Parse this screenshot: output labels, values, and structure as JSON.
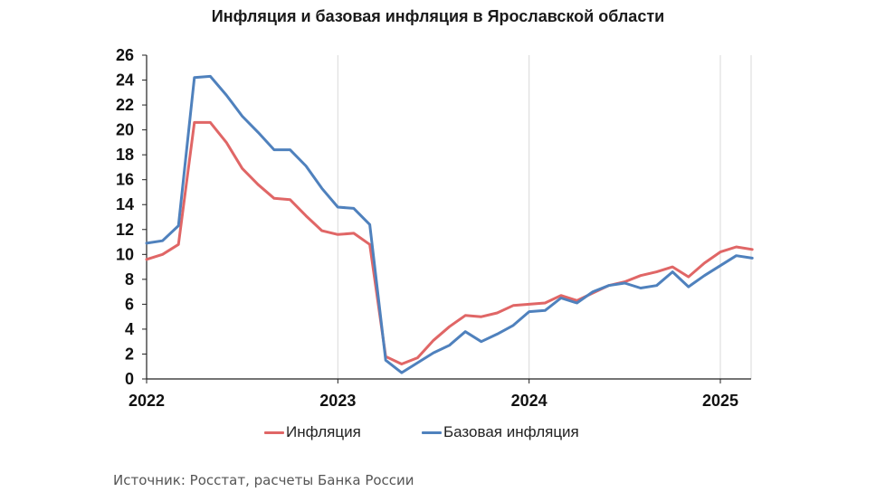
{
  "chart_data": {
    "type": "line",
    "title": "Инфляция и базовая инфляция в Ярославской области",
    "xlabel": "",
    "ylabel": "",
    "ylim": [
      0,
      26
    ],
    "yticks": [
      0,
      2,
      4,
      6,
      8,
      10,
      12,
      14,
      16,
      18,
      20,
      22,
      24,
      26
    ],
    "xticks": [
      "2022",
      "2023",
      "2024",
      "2025"
    ],
    "grid": "vertical",
    "legend_position": "bottom",
    "x": [
      "2022-01",
      "2022-02",
      "2022-03",
      "2022-04",
      "2022-05",
      "2022-06",
      "2022-07",
      "2022-08",
      "2022-09",
      "2022-10",
      "2022-11",
      "2022-12",
      "2023-01",
      "2023-02",
      "2023-03",
      "2023-04",
      "2023-05",
      "2023-06",
      "2023-07",
      "2023-08",
      "2023-09",
      "2023-10",
      "2023-11",
      "2023-12",
      "2024-01",
      "2024-02",
      "2024-03",
      "2024-04",
      "2024-05",
      "2024-06",
      "2024-07",
      "2024-08",
      "2024-09",
      "2024-10",
      "2024-11",
      "2024-12",
      "2025-01",
      "2025-02",
      "2025-03"
    ],
    "series": [
      {
        "name": "Инфляция",
        "color": "#e06666",
        "values": [
          9.6,
          10.0,
          10.8,
          20.6,
          20.6,
          19.0,
          16.9,
          15.6,
          14.5,
          14.4,
          13.1,
          11.9,
          11.6,
          11.7,
          10.8,
          1.8,
          1.2,
          1.7,
          3.1,
          4.2,
          5.1,
          5.0,
          5.3,
          5.9,
          6.0,
          6.1,
          6.7,
          6.3,
          6.9,
          7.5,
          7.8,
          8.3,
          8.6,
          9.0,
          8.2,
          9.3,
          10.2,
          10.6,
          10.4
        ]
      },
      {
        "name": "Базовая инфляция",
        "color": "#4f81bd",
        "values": [
          10.9,
          11.1,
          12.3,
          24.2,
          24.3,
          22.8,
          21.1,
          19.8,
          18.4,
          18.4,
          17.1,
          15.3,
          13.8,
          13.7,
          12.4,
          1.5,
          0.5,
          1.3,
          2.1,
          2.7,
          3.8,
          3.0,
          3.6,
          4.3,
          5.4,
          5.5,
          6.5,
          6.1,
          7.0,
          7.5,
          7.7,
          7.3,
          7.5,
          8.6,
          7.4,
          8.3,
          9.1,
          9.9,
          9.7
        ]
      }
    ]
  },
  "source_text": "Источник: Росстат, расчеты Банка России"
}
